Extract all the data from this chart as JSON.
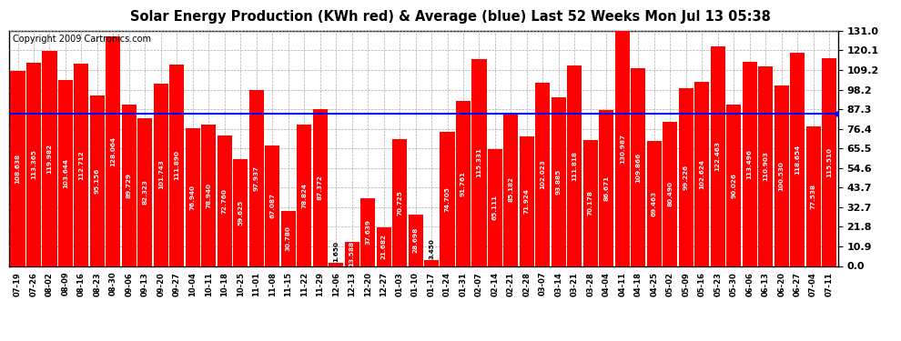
{
  "title": "Solar Energy Production (KWh red) & Average (blue) Last 52 Weeks Mon Jul 13 05:38",
  "copyright": "Copyright 2009 Cartronics.com",
  "xlabels": [
    "07-19",
    "07-26",
    "08-02",
    "08-09",
    "08-16",
    "08-23",
    "08-30",
    "09-06",
    "09-13",
    "09-20",
    "09-27",
    "10-04",
    "10-11",
    "10-18",
    "10-25",
    "11-01",
    "11-08",
    "11-15",
    "11-22",
    "11-29",
    "12-06",
    "12-13",
    "12-20",
    "12-27",
    "01-03",
    "01-10",
    "01-17",
    "01-24",
    "01-31",
    "02-07",
    "02-14",
    "02-21",
    "02-28",
    "03-07",
    "03-14",
    "03-21",
    "03-28",
    "04-04",
    "04-11",
    "04-18",
    "04-25",
    "05-02",
    "05-09",
    "05-16",
    "05-23",
    "05-30",
    "06-06",
    "06-13",
    "06-20",
    "06-27",
    "07-04",
    "07-11"
  ],
  "values": [
    108.638,
    113.365,
    119.982,
    103.644,
    112.712,
    95.156,
    128.064,
    89.729,
    82.323,
    101.743,
    111.89,
    76.94,
    78.94,
    72.76,
    59.625,
    97.937,
    67.087,
    30.78,
    78.824,
    87.372,
    1.65,
    13.588,
    37.639,
    21.682,
    70.725,
    28.698,
    3.45,
    74.705,
    91.761,
    115.331,
    65.111,
    85.182,
    71.924,
    102.023,
    93.885,
    111.818,
    70.178,
    86.671,
    130.987,
    109.866,
    69.463,
    80.49,
    99.226,
    102.624,
    122.463,
    90.026,
    113.496,
    110.903,
    100.53,
    118.654,
    77.538,
    115.51
  ],
  "bar_color": "#FF0000",
  "avg_color": "#0000FF",
  "avg_value": 84.712,
  "ylim": [
    0,
    131.0
  ],
  "yticks": [
    0.0,
    10.9,
    21.8,
    32.7,
    43.7,
    54.6,
    65.5,
    76.4,
    87.3,
    98.2,
    109.2,
    120.1,
    131.0
  ],
  "bg_color": "#FFFFFF",
  "grid_color": "#AAAAAA",
  "title_fontsize": 10.5,
  "copyright_fontsize": 7,
  "bar_value_fontsize": 5.2
}
